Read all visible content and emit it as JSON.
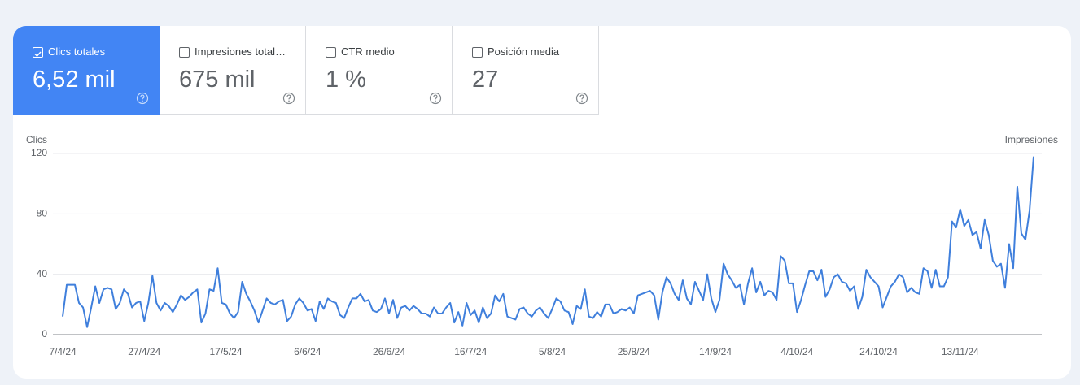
{
  "cards": [
    {
      "label": "Clics totales",
      "value": "6,52 mil",
      "selected": true
    },
    {
      "label": "Impresiones total…",
      "value": "675 mil",
      "selected": false
    },
    {
      "label": "CTR medio",
      "value": "1 %",
      "selected": false
    },
    {
      "label": "Posición media",
      "value": "27",
      "selected": false
    }
  ],
  "chart_data": {
    "type": "line",
    "y_label": "Clics",
    "y2_label": "Impresiones",
    "color": "#3f7fdc",
    "ylim": [
      0,
      120
    ],
    "yticks": [
      0,
      40,
      80,
      120
    ],
    "grid": true,
    "categories": [
      "7/4/24",
      null,
      null,
      null,
      null,
      null,
      null,
      null,
      null,
      null,
      null,
      null,
      null,
      null,
      null,
      null,
      null,
      null,
      null,
      null,
      "27/4/24",
      null,
      null,
      null,
      null,
      null,
      null,
      null,
      null,
      null,
      null,
      null,
      null,
      null,
      null,
      null,
      null,
      null,
      null,
      null,
      "17/5/24",
      null,
      null,
      null,
      null,
      null,
      null,
      null,
      null,
      null,
      null,
      null,
      null,
      null,
      null,
      null,
      null,
      null,
      null,
      null,
      "6/6/24",
      null,
      null,
      null,
      null,
      null,
      null,
      null,
      null,
      null,
      null,
      null,
      null,
      null,
      null,
      null,
      null,
      null,
      null,
      null,
      "26/6/24",
      null,
      null,
      null,
      null,
      null,
      null,
      null,
      null,
      null,
      null,
      null,
      null,
      null,
      null,
      null,
      null,
      null,
      null,
      null,
      "16/7/24",
      null,
      null,
      null,
      null,
      null,
      null,
      null,
      null,
      null,
      null,
      null,
      null,
      null,
      null,
      null,
      null,
      null,
      null,
      null,
      "5/8/24",
      null,
      null,
      null,
      null,
      null,
      null,
      null,
      null,
      null,
      null,
      null,
      null,
      null,
      null,
      null,
      null,
      null,
      null,
      null,
      "25/8/24",
      null,
      null,
      null,
      null,
      null,
      null,
      null,
      null,
      null,
      null,
      null,
      null,
      null,
      null,
      null,
      null,
      null,
      null,
      null,
      "14/9/24",
      null,
      null,
      null,
      null,
      null,
      null,
      null,
      null,
      null,
      null,
      null,
      null,
      null,
      null,
      null,
      null,
      null,
      null,
      null,
      "4/10/24",
      null,
      null,
      null,
      null,
      null,
      null,
      null,
      null,
      null,
      null,
      null,
      null,
      null,
      null,
      null,
      null,
      null,
      null,
      null,
      "24/10/24",
      null,
      null,
      null,
      null,
      null,
      null,
      null,
      null,
      null,
      null,
      null,
      null,
      null,
      null,
      null,
      null,
      null,
      null,
      null,
      "13/11/24",
      null,
      null,
      null,
      null,
      null,
      null,
      null,
      null,
      null,
      null,
      null,
      null,
      null,
      null,
      null,
      null,
      null,
      null
    ],
    "values": [
      12,
      33,
      33,
      33,
      21,
      18,
      5,
      18,
      32,
      21,
      30,
      31,
      30,
      17,
      21,
      30,
      27,
      18,
      21,
      22,
      9,
      21,
      39,
      21,
      16,
      21,
      19,
      15,
      20,
      26,
      23,
      25,
      28,
      30,
      8,
      14,
      30,
      29,
      44,
      21,
      20,
      14,
      11,
      15,
      35,
      27,
      22,
      16,
      8,
      16,
      24,
      21,
      20,
      22,
      23,
      9,
      12,
      20,
      24,
      21,
      16,
      17,
      9,
      22,
      17,
      24,
      22,
      21,
      13,
      11,
      18,
      24,
      24,
      27,
      22,
      23,
      16,
      15,
      17,
      24,
      14,
      23,
      11,
      18,
      19,
      16,
      19,
      17,
      14,
      14,
      12,
      18,
      14,
      14,
      18,
      21,
      8,
      15,
      6,
      21,
      13,
      16,
      8,
      18,
      11,
      14,
      26,
      22,
      27,
      12,
      11,
      10,
      17,
      18,
      14,
      12,
      16,
      18,
      14,
      11,
      17,
      24,
      22,
      16,
      15,
      7,
      19,
      17,
      30,
      12,
      11,
      15,
      12,
      20,
      20,
      14,
      15,
      17,
      16,
      18,
      14,
      26,
      27,
      28,
      29,
      26,
      10,
      28,
      38,
      34,
      27,
      23,
      36,
      24,
      20,
      35,
      29,
      23,
      40,
      24,
      15,
      23,
      47,
      40,
      36,
      31,
      33,
      20,
      34,
      44,
      28,
      35,
      26,
      29,
      28,
      23,
      52,
      49,
      34,
      34,
      15,
      23,
      33,
      42,
      42,
      36,
      43,
      25,
      30,
      38,
      40,
      35,
      34,
      29,
      32,
      17,
      25,
      43,
      38,
      35,
      32,
      18,
      25,
      32,
      35,
      40,
      38,
      28,
      31,
      28,
      27,
      44,
      42,
      31,
      43,
      32,
      32,
      38,
      75,
      71,
      83,
      72,
      76,
      66,
      68,
      57,
      76,
      66,
      49,
      45,
      47,
      31,
      60,
      44,
      98,
      67,
      63,
      82,
      118
    ]
  }
}
